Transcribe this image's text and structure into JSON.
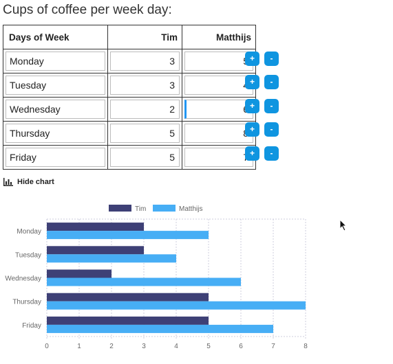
{
  "page": {
    "title": "Cups of coffee per week day:"
  },
  "table": {
    "headers": [
      "Days of Week",
      "Tim",
      "Matthijs"
    ],
    "rows": [
      {
        "day": "Monday",
        "tim": "3",
        "matthijs": "5"
      },
      {
        "day": "Tuesday",
        "tim": "3",
        "matthijs": "4"
      },
      {
        "day": "Wednesday",
        "tim": "2",
        "matthijs": "6"
      },
      {
        "day": "Thursday",
        "tim": "5",
        "matthijs": "8"
      },
      {
        "day": "Friday",
        "tim": "5",
        "matthijs": "7"
      }
    ],
    "plus_label": "+",
    "minus_label": "-"
  },
  "controls": {
    "hide_chart_label": "Hide chart"
  },
  "chart_data": {
    "type": "bar",
    "orientation": "horizontal",
    "categories": [
      "Monday",
      "Tuesday",
      "Wednesday",
      "Thursday",
      "Friday"
    ],
    "series": [
      {
        "name": "Tim",
        "values": [
          3,
          3,
          2,
          5,
          5
        ],
        "color": "#3e4076"
      },
      {
        "name": "Matthijs",
        "values": [
          5,
          4,
          6,
          8,
          7
        ],
        "color": "#47aef5"
      }
    ],
    "xlim": [
      0,
      8
    ],
    "xticks": [
      "0",
      "1",
      "2",
      "3",
      "4",
      "5",
      "6",
      "7",
      "8"
    ],
    "grid": true,
    "legend": "top-center"
  }
}
